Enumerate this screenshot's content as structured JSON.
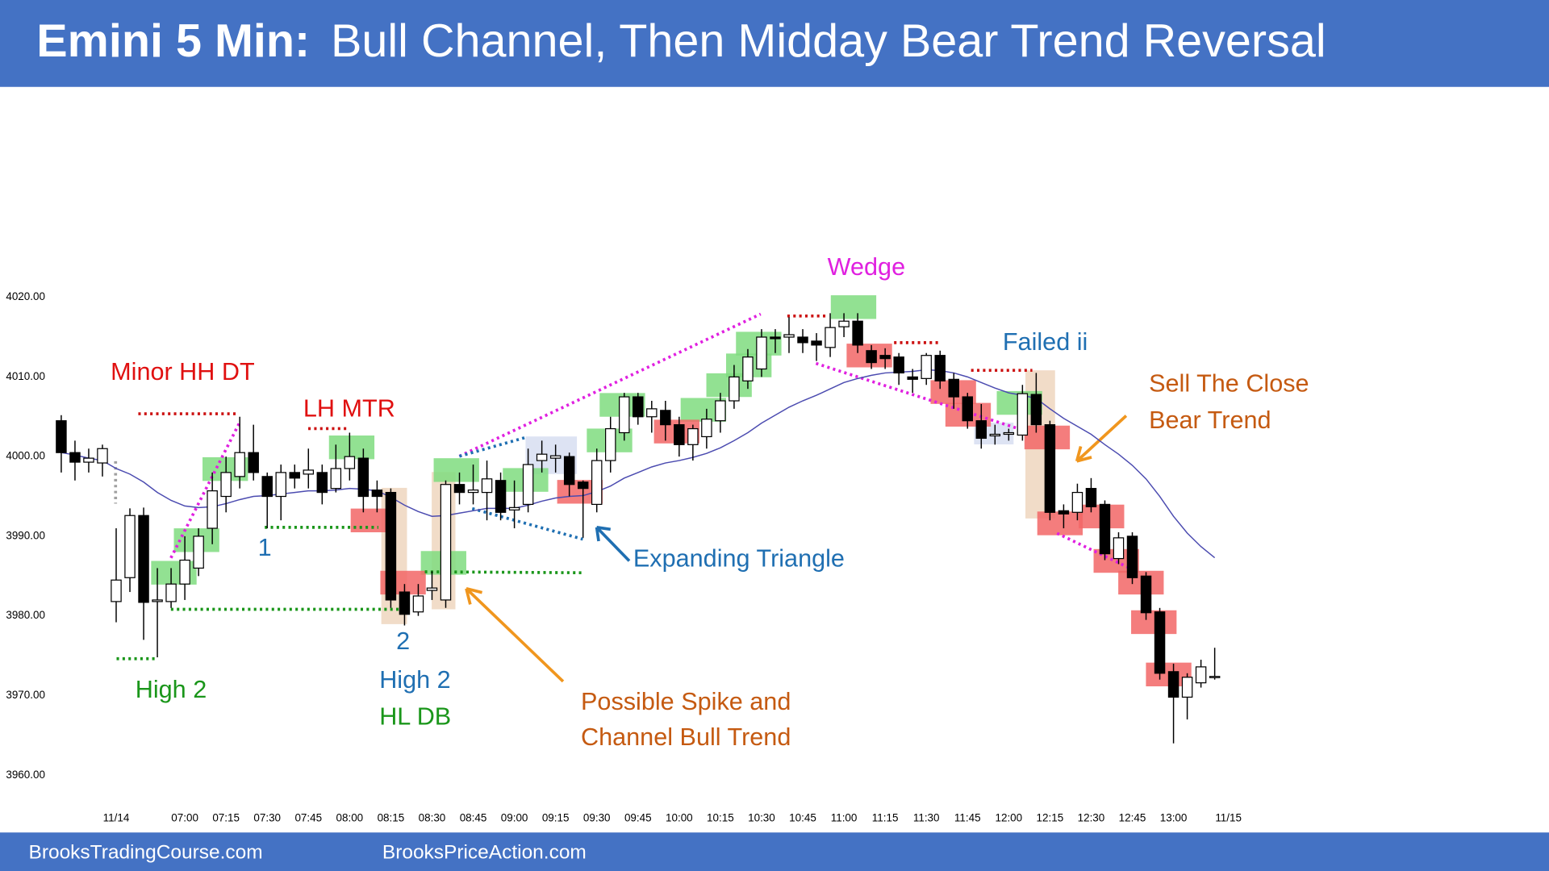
{
  "chart_data": {
    "type": "candlestick",
    "title_prefix": "Emini 5 Min:",
    "title": "Bull Channel, Then Midday Bear Trend Reversal",
    "categories": [
      null,
      null,
      null,
      null,
      "11/14",
      null,
      null,
      null,
      null,
      "07:00",
      null,
      null,
      "07:15",
      null,
      null,
      "07:30",
      null,
      null,
      "07:45",
      null,
      null,
      "08:00",
      null,
      null,
      "08:15",
      null,
      null,
      "08:30",
      null,
      null,
      "08:45",
      null,
      null,
      "09:00",
      null,
      null,
      "09:15",
      null,
      null,
      "09:30",
      null,
      null,
      "09:45",
      null,
      null,
      "10:00",
      null,
      null,
      "10:15",
      null,
      null,
      "10:30",
      null,
      null,
      "10:45",
      null,
      null,
      "11:00",
      null,
      null,
      "11:15",
      null,
      null,
      "11:30",
      null,
      null,
      "11:45",
      null,
      null,
      "12:00",
      null,
      null,
      "12:15",
      null,
      null,
      "12:30",
      null,
      null,
      "12:45",
      null,
      null,
      "13:00",
      null,
      null,
      null,
      "11/15"
    ],
    "open": [
      4004.5,
      4000.5,
      3999.3,
      3999.2,
      3981.8,
      3984.8,
      3992.6,
      3981.8,
      3981.8,
      3984,
      3986,
      3991,
      3995,
      3997.5,
      4000.5,
      3997.5,
      3995,
      3998,
      3997.8,
      3998,
      3996,
      3998.5,
      3999.8,
      3995.8,
      3995.5,
      3983,
      3980.5,
      3983.2,
      3982,
      3996.5,
      3995.5,
      3995.5,
      3997,
      3993.3,
      3994,
      3999.5,
      3999.8,
      4000,
      3996.8,
      3994,
      3999.5,
      4003,
      4007.5,
      4005,
      4005.8,
      4004,
      4001.5,
      4002.5,
      4004.5,
      4007,
      4009.5,
      4011,
      4015,
      4015,
      4015,
      4014.5,
      4013.7,
      4016.3,
      4017,
      4013.3,
      4012.7,
      4012.5,
      4010,
      4009.8,
      4012.7,
      4009.7,
      4007.5,
      4004.5,
      4002.6,
      4002.8,
      4002.7,
      4007.8,
      4004,
      3993.2,
      3993,
      3996,
      3994,
      3987.2,
      3990,
      3985,
      3980.5,
      3973,
      3969.8,
      3971.6,
      3972.3,
      null
    ],
    "high": [
      4005.2,
      4002,
      4001,
      4001.5,
      3991,
      3993.5,
      3993.6,
      3986,
      3986,
      3990,
      3991,
      3998,
      4000,
      4005,
      4004,
      3998,
      3999,
      3999,
      4001,
      3999,
      4001.5,
      4003,
      4001,
      3997,
      3996,
      3984,
      3984,
      3985.6,
      3997,
      3998,
      3999,
      3999.5,
      3998,
      3997,
      4001,
      4002,
      4001.5,
      4000.5,
      3997,
      4001,
      4005,
      4008,
      4008,
      4007,
      4007,
      4005,
      4004,
      4006,
      4008,
      4011.5,
      4013.5,
      4016,
      4016,
      4017.5,
      4016,
      4015.5,
      4018,
      4018,
      4018,
      4014,
      4013.6,
      4013,
      4011,
      4013,
      4013.3,
      4010.5,
      4008,
      4006.6,
      4004,
      4003.5,
      4009,
      4010.5,
      4004.5,
      3994,
      3996.6,
      3997.3,
      3994.5,
      3990.5,
      3990.5,
      3985.5,
      3981,
      3974,
      3972.8,
      3974.5,
      3976,
      null
    ],
    "low": [
      3998,
      3997,
      3998,
      3997.5,
      3979.2,
      3983,
      3977,
      3974.8,
      3981,
      3982,
      3985,
      3989,
      3993,
      3996,
      3997,
      3991,
      3992,
      3996,
      3996,
      3994,
      3995.5,
      3997,
      3993,
      3993,
      3981,
      3978.8,
      3980,
      3982,
      3981,
      3994,
      3994,
      3992,
      3992,
      3991,
      3993,
      3998,
      3998,
      3995,
      3989.8,
      3993,
      3998,
      4002,
      4004,
      4003,
      4002,
      4000,
      3999.5,
      4001,
      4003,
      4006,
      4008.5,
      4010,
      4013,
      4013,
      4013,
      4012,
      4012.5,
      4015,
      4013,
      4011,
      4011,
      4009,
      4008,
      4009,
      4008.5,
      4006,
      4003.5,
      4001,
      4001.5,
      4002,
      4002,
      4003,
      3992,
      3991,
      3992,
      3993,
      3987,
      3986.5,
      3984,
      3979.5,
      3972,
      3964,
      3967,
      3971,
      3972,
      null
    ],
    "close": [
      4000.5,
      3999.3,
      3999.8,
      4001,
      3984.5,
      3992.6,
      3981.7,
      3982,
      3984,
      3987,
      3990,
      3995.7,
      3998,
      4000.5,
      3998,
      3995,
      3998,
      3997.3,
      3998.3,
      3995.5,
      3998.5,
      4000,
      3995,
      3995,
      3982,
      3980.2,
      3982.5,
      3983.5,
      3996.5,
      3995.5,
      3995.8,
      3997.2,
      3993,
      3993.6,
      3999,
      4000.3,
      4000.1,
      3996.5,
      3996,
      3999.5,
      4003.5,
      4007.5,
      4005,
      4006,
      4004,
      4001.5,
      4003.5,
      4004.7,
      4007,
      4010,
      4012.5,
      4015,
      4014.8,
      4015.3,
      4014.3,
      4014,
      4016.2,
      4017,
      4014,
      4011.8,
      4012.3,
      4010.5,
      4009.7,
      4012.7,
      4009.5,
      4007.5,
      4004.5,
      4002.3,
      4002.8,
      4003,
      4007.9,
      4004,
      3993,
      3992.8,
      3995.5,
      3993.7,
      3987.8,
      3989.8,
      3984.8,
      3980.4,
      3972.8,
      3969.8,
      3972.3,
      3973.6,
      3972.4,
      null
    ],
    "up_color": "#ffffff",
    "down_color": "#000000",
    "ma": {
      "color": "#4b4bb0",
      "values": [
        4000.5,
        4000.2,
        3999.8,
        3999.5,
        3998.5,
        3997.8,
        3996.8,
        3995.5,
        3994.5,
        3993.8,
        3993.6,
        3993.7,
        3994.1,
        3994.6,
        3995,
        3995.1,
        3995.3,
        3995.5,
        3995.7,
        3995.7,
        3995.8,
        3996,
        3995.9,
        3995.7,
        3994.9,
        3993.9,
        3993.1,
        3992.5,
        3992.6,
        3992.9,
        3993.2,
        3993.5,
        3993.5,
        3993.5,
        3993.9,
        3994.4,
        3994.8,
        3995,
        3995.1,
        3995.6,
        3996.3,
        3997.3,
        3998,
        3998.7,
        3999.2,
        3999.5,
        3999.9,
        4000.4,
        4001.1,
        4002,
        4003,
        4004.2,
        4005.2,
        4006.2,
        4007,
        4007.7,
        4008.5,
        4009.3,
        4009.8,
        4010.2,
        4010.5,
        4010.6,
        4010.7,
        4010.9,
        4010.8,
        4010.5,
        4010,
        4009.3,
        4008.6,
        4008,
        4007.7,
        4007.3,
        4006,
        4004.8,
        4003.8,
        4002.8,
        4001.5,
        4000.3,
        3998.9,
        3997.2,
        3995,
        3992.5,
        3990.4,
        3988.7,
        3987.3,
        null
      ]
    },
    "ylim": [
      3957,
      4046
    ],
    "yticks": [
      {
        "value": 3960,
        "label": "3960.00"
      },
      {
        "value": 3970,
        "label": "3970.00"
      },
      {
        "value": 3980,
        "label": "3980.00"
      },
      {
        "value": 3990,
        "label": "3990.00"
      },
      {
        "value": 4000,
        "label": "4000.00"
      },
      {
        "value": 4010,
        "label": "4010.00"
      },
      {
        "value": 4020,
        "label": "4020.00"
      }
    ],
    "annotations": [
      {
        "text": "Minor HH DT",
        "color": "#e01010"
      },
      {
        "text": "LH MTR",
        "color": "#e01010"
      },
      {
        "text": "1",
        "color": "#1f6fb2"
      },
      {
        "text": "High 2",
        "color": "#1a961a"
      },
      {
        "text": "2",
        "color": "#1f6fb2"
      },
      {
        "text": "High 2",
        "color": "#1f6fb2"
      },
      {
        "text": "HL DB",
        "color": "#1a961a"
      },
      {
        "text": "Wedge",
        "color": "#e020e0"
      },
      {
        "text": "Failed ii",
        "color": "#1f6fb2"
      },
      {
        "text": "Sell The Close",
        "color": "#c55a11"
      },
      {
        "text": "Bear Trend",
        "color": "#c55a11"
      },
      {
        "text": "Expanding Triangle",
        "color": "#1f6fb2"
      },
      {
        "text": "Possible Spike and",
        "color": "#c55a11"
      },
      {
        "text": "Channel Bull Trend",
        "color": "#c55a11"
      }
    ]
  },
  "footer": {
    "left": "BrooksTradingCourse.com",
    "right": "BrooksPriceAction.com"
  }
}
